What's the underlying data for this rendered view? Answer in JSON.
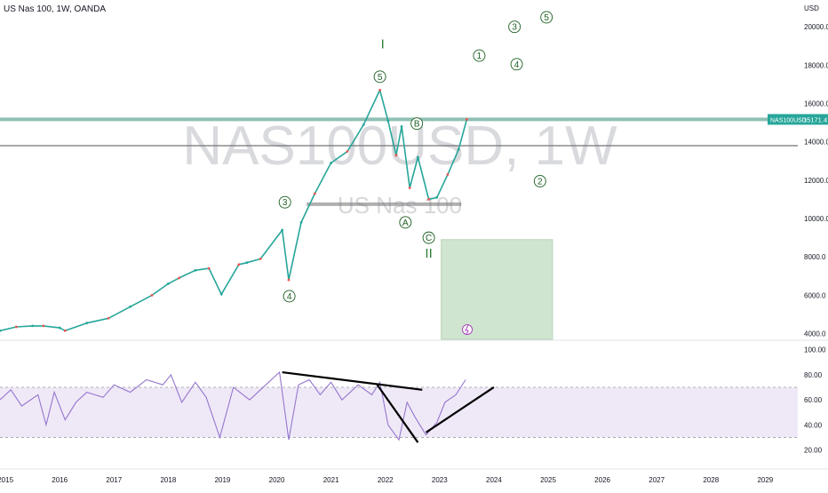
{
  "header": {
    "title": "US Nas 100, 1W, OANDA",
    "watermark_main": "NAS100USD, 1W",
    "watermark_sub": "US Nas 100"
  },
  "price_axis": {
    "currency": "USD",
    "ticks": [
      {
        "label": "20000.0",
        "value": 20000
      },
      {
        "label": "18000.0",
        "value": 18000
      },
      {
        "label": "16000.0",
        "value": 16000
      },
      {
        "label": "14000.0",
        "value": 14000
      },
      {
        "label": "12000.0",
        "value": 12000
      },
      {
        "label": "10000.0",
        "value": 10000
      },
      {
        "label": "8000.0",
        "value": 8000
      },
      {
        "label": "6000.0",
        "value": 6000
      },
      {
        "label": "4000.0",
        "value": 4000
      }
    ],
    "last_price_symbol": "NAS100USD",
    "last_price_label": "15171.4",
    "last_price_value": 15171.4,
    "accent_color": "#26a69a"
  },
  "rsi_axis": {
    "ticks": [
      {
        "label": "100.00",
        "value": 100
      },
      {
        "label": "80.00",
        "value": 80
      },
      {
        "label": "60.00",
        "value": 60
      },
      {
        "label": "40.00",
        "value": 40
      },
      {
        "label": "20.00",
        "value": 20
      }
    ],
    "upper_band": 70,
    "lower_band": 30,
    "line_color": "#9575cd",
    "band_fill": "#ede7f6"
  },
  "time_axis": {
    "ticks": [
      {
        "label": "2015",
        "year": 2015
      },
      {
        "label": "2016",
        "year": 2016
      },
      {
        "label": "2017",
        "year": 2017
      },
      {
        "label": "2018",
        "year": 2018
      },
      {
        "label": "2019",
        "year": 2019
      },
      {
        "label": "2020",
        "year": 2020
      },
      {
        "label": "2021",
        "year": 2021
      },
      {
        "label": "2022",
        "year": 2022
      },
      {
        "label": "2023",
        "year": 2023
      },
      {
        "label": "2024",
        "year": 2024
      },
      {
        "label": "2025",
        "year": 2025
      },
      {
        "label": "2026",
        "year": 2026
      },
      {
        "label": "2027",
        "year": 2027
      },
      {
        "label": "2028",
        "year": 2028
      },
      {
        "label": "2029",
        "year": 2029
      }
    ]
  },
  "chart_data": {
    "type": "line",
    "title": "US Nas 100, 1W, OANDA",
    "xlabel": "",
    "ylabel": "USD",
    "ylim": [
      3700,
      21400
    ],
    "xlim": [
      2014.9,
      2029.6
    ],
    "grid": false,
    "series": [
      {
        "name": "",
        "x": [
          2014.9,
          2015.2,
          2015.5,
          2015.7,
          2016.0,
          2016.1,
          2016.5,
          2016.9,
          2017.3,
          2017.7,
          2018.0,
          2018.2,
          2018.5,
          2018.75,
          2018.98,
          2019.3,
          2019.45,
          2019.7,
          2020.1,
          2020.22,
          2020.45,
          2020.7,
          2021.0,
          2021.3,
          2021.6,
          2021.9,
          2022.05,
          2022.2,
          2022.3,
          2022.45,
          2022.6,
          2022.8,
          2022.95,
          2023.15,
          2023.35,
          2023.5
        ],
        "values": [
          4150,
          4350,
          4400,
          4400,
          4300,
          4150,
          4550,
          4800,
          5400,
          6000,
          6600,
          6900,
          7300,
          7400,
          6050,
          7600,
          7700,
          7900,
          9400,
          6800,
          9800,
          11300,
          12900,
          13500,
          14900,
          16700,
          15100,
          13300,
          14800,
          11600,
          13200,
          11000,
          11100,
          12300,
          13600,
          15171
        ]
      }
    ],
    "horizontal_levels": [
      {
        "value": 15171.4,
        "color": "#8fbfb4"
      },
      {
        "value": 13800,
        "color": "#a8a8a8"
      },
      {
        "value": 10750,
        "color": "#b0b0b0"
      }
    ],
    "target_zone": {
      "x0": 2023.03,
      "x1": 2025.08,
      "y_low": 3700,
      "y_high": 8900,
      "color": "#c8e0c8"
    },
    "wave_labels": [
      {
        "text": "5",
        "x": 2021.9,
        "y": 17400,
        "circled": true
      },
      {
        "text": "3",
        "x": 2020.15,
        "y": 10850,
        "circled": true
      },
      {
        "text": "4",
        "x": 2020.23,
        "y": 5950,
        "circled": true
      },
      {
        "text": "A",
        "x": 2022.37,
        "y": 9800,
        "circled": true
      },
      {
        "text": "B",
        "x": 2022.58,
        "y": 14950,
        "circled": true
      },
      {
        "text": "C",
        "x": 2022.8,
        "y": 9000,
        "circled": true
      },
      {
        "text": "1",
        "x": 2023.73,
        "y": 18500,
        "circled": true
      },
      {
        "text": "2",
        "x": 2024.85,
        "y": 11950,
        "circled": true
      },
      {
        "text": "3",
        "x": 2024.38,
        "y": 20000,
        "circled": true
      },
      {
        "text": "4",
        "x": 2024.42,
        "y": 18050,
        "circled": true
      },
      {
        "text": "5",
        "x": 2024.97,
        "y": 20500,
        "circled": true
      },
      {
        "text": "I",
        "x": 2021.95,
        "y": 19100,
        "circled": false
      },
      {
        "text": "II",
        "x": 2022.8,
        "y": 8200,
        "circled": false
      }
    ],
    "rsi": {
      "name": "",
      "ylim": [
        14,
        104
      ],
      "x": [
        2014.9,
        2015.1,
        2015.3,
        2015.6,
        2015.75,
        2015.9,
        2016.1,
        2016.3,
        2016.5,
        2016.8,
        2017.0,
        2017.3,
        2017.6,
        2017.9,
        2018.05,
        2018.25,
        2018.5,
        2018.7,
        2018.95,
        2019.2,
        2019.5,
        2019.7,
        2020.05,
        2020.22,
        2020.4,
        2020.6,
        2020.8,
        2021.0,
        2021.2,
        2021.5,
        2021.75,
        2021.9,
        2022.05,
        2022.25,
        2022.4,
        2022.55,
        2022.75,
        2022.95,
        2023.1,
        2023.3,
        2023.48
      ],
      "values": [
        60,
        68,
        55,
        64,
        40,
        66,
        44,
        58,
        66,
        62,
        72,
        66,
        76,
        72,
        80,
        58,
        74,
        62,
        30,
        70,
        60,
        68,
        82,
        28,
        72,
        76,
        64,
        74,
        60,
        72,
        64,
        74,
        40,
        28,
        58,
        46,
        32,
        42,
        58,
        64,
        76
      ]
    },
    "rsi_trendlines": [
      {
        "x1": 2020.1,
        "y1": 82,
        "x2": 2022.68,
        "y2": 68
      },
      {
        "x1": 2021.85,
        "y1": 72,
        "x2": 2022.6,
        "y2": 26
      },
      {
        "x1": 2022.75,
        "y1": 34,
        "x2": 2024.0,
        "y2": 70
      }
    ]
  }
}
